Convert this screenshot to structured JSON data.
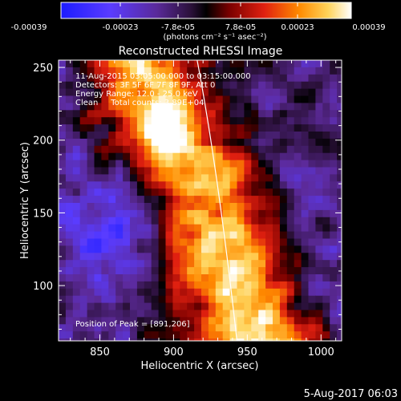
{
  "chart_data": {
    "type": "heatmap",
    "title": "Reconstructed RHESSI Image",
    "xlabel": "Heliocentric X (arcsec)",
    "ylabel": "Heliocentric Y (arcsec)",
    "xlim": [
      822,
      1014
    ],
    "ylim": [
      62,
      255
    ],
    "x_ticks": [
      850,
      900,
      950,
      1000
    ],
    "y_ticks": [
      100,
      150,
      200,
      250
    ],
    "colorbar": {
      "ticks": [
        "-0.00039",
        "-0.00023",
        "-7.8e-05",
        "7.8e-05",
        "0.00023",
        "0.00039"
      ],
      "label": "(photons cm⁻² s⁻¹ asec⁻²)",
      "range": [
        -0.00039,
        0.00039
      ]
    },
    "annotations": [
      "11-Aug-2015 03:05:00.000 to 03:15:00.000",
      "Detectors: 3F 5F 6F 7F 8F 9F, Att 0",
      "Energy Range: 12.0 - 25.0 keV",
      "Clean     Total counts: 3.89E+04"
    ],
    "peak_label": "Position of Peak = [891,206]",
    "limb_curve": [
      [
        916,
        255
      ],
      [
        930,
        180
      ],
      [
        943,
        62
      ]
    ]
  },
  "footer": {
    "timestamp": "5-Aug-2017 06:03"
  }
}
